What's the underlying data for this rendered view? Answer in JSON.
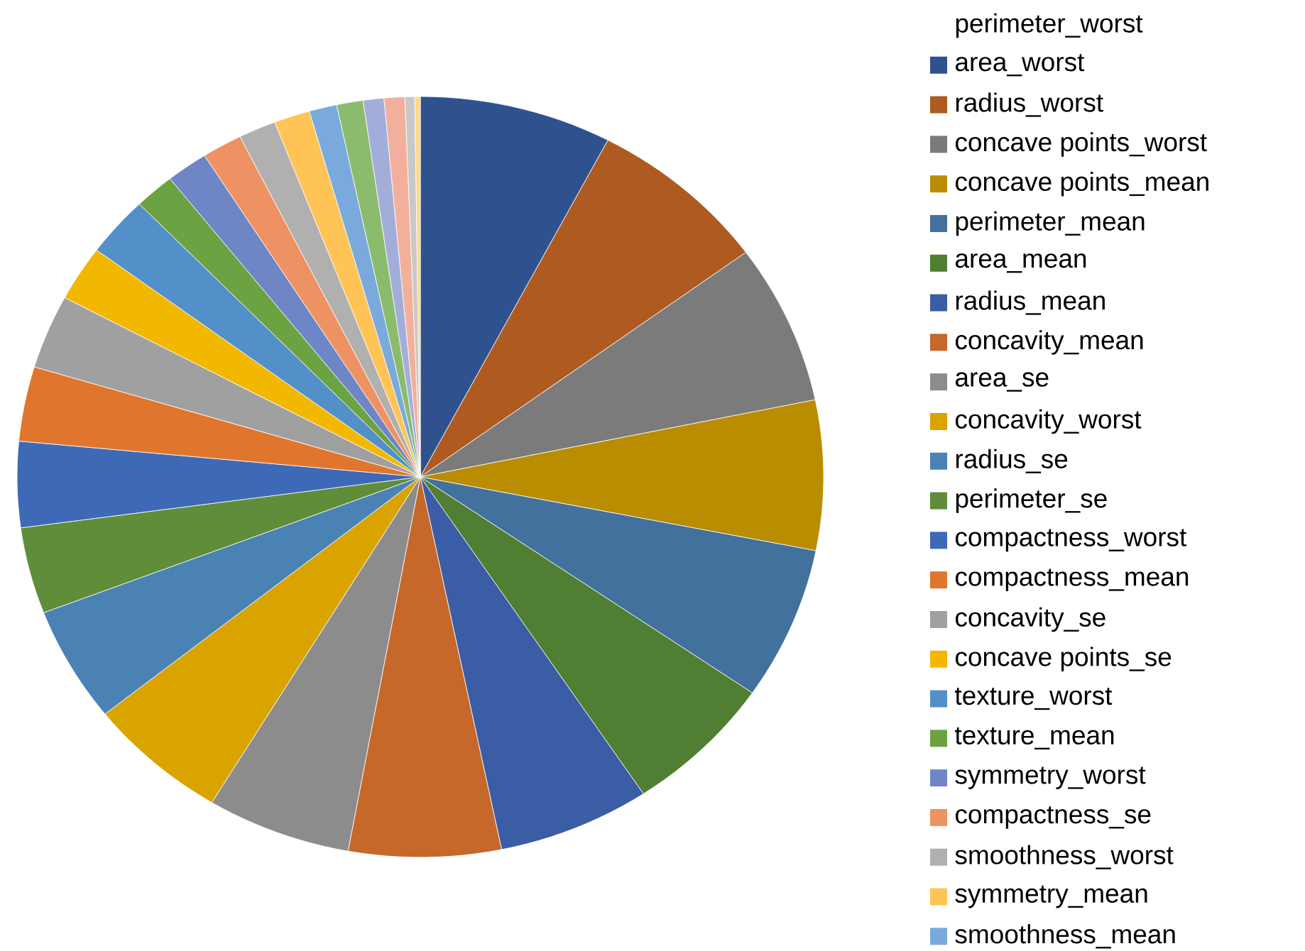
{
  "chart_data": {
    "type": "pie",
    "legend_title": "perimeter_worst",
    "legend": "right",
    "categories": [
      "area_worst",
      "radius_worst",
      "concave points_worst",
      "concave points_mean",
      "perimeter_mean",
      "area_mean",
      "radius_mean",
      "concavity_mean",
      "area_se",
      "concavity_worst",
      "radius_se",
      "perimeter_se",
      "compactness_worst",
      "compactness_mean",
      "concavity_se",
      "concave points_se",
      "texture_worst",
      "texture_mean",
      "symmetry_worst",
      "compactness_se",
      "smoothness_worst",
      "symmetry_mean",
      "smoothness_mean",
      null,
      null,
      null,
      null,
      null
    ],
    "values": [
      7.7,
      7.25,
      6.8,
      6.36,
      6.5,
      6.06,
      6.1,
      6.1,
      5.78,
      5.64,
      4.9,
      3.67,
      3.64,
      3.17,
      3.14,
      2.36,
      2.56,
      1.61,
      1.67,
      1.61,
      1.5,
      1.44,
      1.11,
      1.06,
      0.83,
      0.83,
      0.39,
      0.22
    ],
    "colors": [
      "#2f528f",
      "#ae5a21",
      "#7b7b7b",
      "#ba8c00",
      "#41719c",
      "#507e32",
      "#3b5da5",
      "#c5682a",
      "#8c8c8c",
      "#d9a300",
      "#4a82b4",
      "#5f8d3a",
      "#3e69b7",
      "#e0762d",
      "#a0a0a0",
      "#f2b800",
      "#5390c9",
      "#6ca342",
      "#6f86c6",
      "#ee9263",
      "#b0b0b0",
      "#ffc455",
      "#7aaadc",
      "#8bbb6c",
      "#a2aeda",
      "#f2b09c",
      "#c8c8c8",
      "#ffd98a"
    ]
  }
}
